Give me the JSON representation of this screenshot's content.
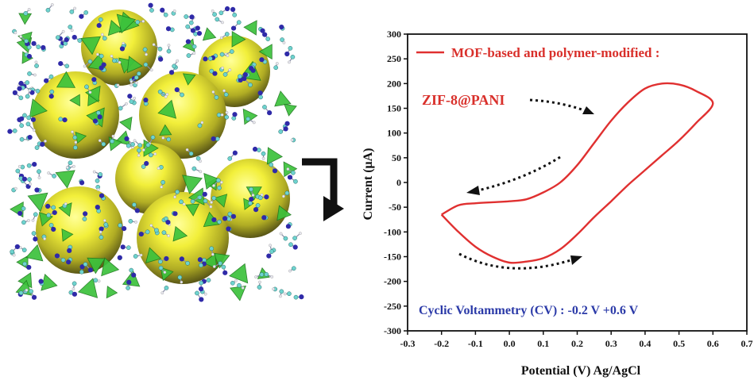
{
  "chart_data": {
    "type": "line",
    "xlabel": "Potential (V) Ag/AgCl",
    "ylabel": "Current (μA)",
    "xlim": [
      -0.3,
      0.7
    ],
    "ylim": [
      -300,
      300
    ],
    "x_ticks": [
      "-0.3",
      "-0.2",
      "-0.1",
      "0.0",
      "0.1",
      "0.2",
      "0.3",
      "0.4",
      "0.5",
      "0.6",
      "0.7"
    ],
    "y_ticks": [
      "300",
      "250",
      "200",
      "150",
      "100",
      "50",
      "0",
      "-50",
      "-100",
      "-150",
      "-200",
      "-250",
      "-300"
    ],
    "grid": false,
    "series": [
      {
        "name": "ZIF-8@PANI",
        "color": "#e03030",
        "x": [
          -0.2,
          -0.15,
          -0.1,
          -0.05,
          0.0,
          0.05,
          0.1,
          0.15,
          0.2,
          0.25,
          0.3,
          0.35,
          0.4,
          0.45,
          0.5,
          0.55,
          0.6,
          0.55,
          0.5,
          0.45,
          0.4,
          0.35,
          0.3,
          0.25,
          0.2,
          0.15,
          0.1,
          0.05,
          0.0,
          -0.05,
          -0.1,
          -0.15,
          -0.2
        ],
        "y": [
          -65,
          -46,
          -42,
          -40,
          -38,
          -34,
          -20,
          0,
          35,
          80,
          125,
          162,
          190,
          200,
          198,
          185,
          160,
          120,
          85,
          55,
          25,
          -5,
          -38,
          -70,
          -105,
          -135,
          -153,
          -160,
          -162,
          -150,
          -130,
          -100,
          -65
        ]
      }
    ],
    "legend": {
      "position": "top",
      "header": "MOF-based and polymer-modified :"
    },
    "annotations": {
      "series_label": "ZIF-8@PANI",
      "method_text": "Cyclic Voltammetry (CV) : -0.2 V +0.6 V"
    }
  },
  "colors": {
    "curve": "#e03030",
    "annotation_red": "#d9302b",
    "annotation_blue": "#2b3aa8",
    "axis": "#111111",
    "sphere_yellow": "#f2ef3a",
    "sphere_shadow": "#55551c",
    "tetra_green": "#3cc23c",
    "atom_blue": "#2f2aa8",
    "atom_cyan": "#6ed3cf"
  },
  "illustration": {
    "name": "ZIF-8 framework structure",
    "arrow_icon": "bent-arrow-icon"
  }
}
